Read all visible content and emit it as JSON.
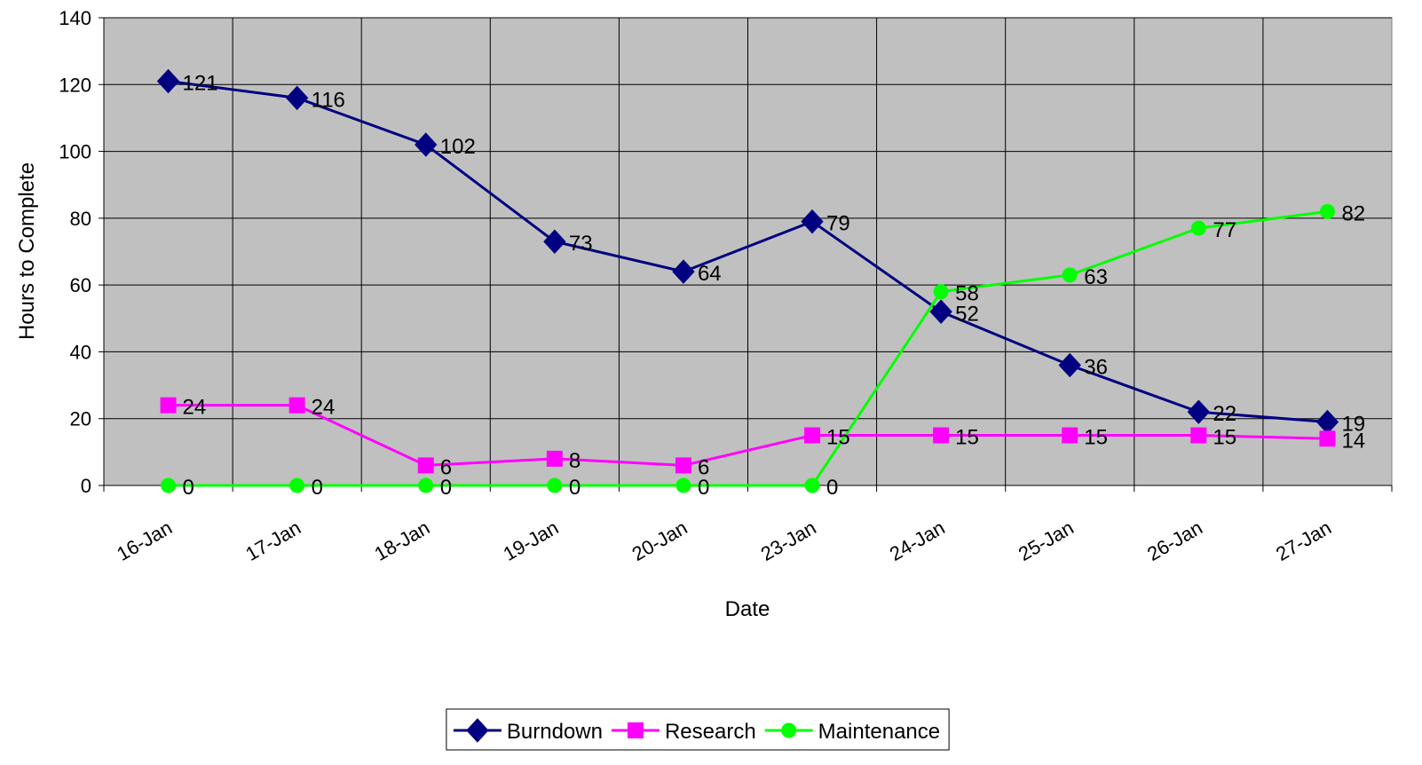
{
  "chart_data": {
    "type": "line",
    "x_label": "Date",
    "y_label": "Hours to Complete",
    "categories": [
      "16-Jan",
      "17-Jan",
      "18-Jan",
      "19-Jan",
      "20-Jan",
      "23-Jan",
      "24-Jan",
      "25-Jan",
      "26-Jan",
      "27-Jan"
    ],
    "series": [
      {
        "name": "Burndown",
        "color": "#000080",
        "marker": "diamond",
        "values": [
          121,
          116,
          102,
          73,
          64,
          79,
          52,
          36,
          22,
          19
        ]
      },
      {
        "name": "Research",
        "color": "#ff00ff",
        "marker": "square",
        "values": [
          24,
          24,
          6,
          8,
          6,
          15,
          15,
          15,
          15,
          14
        ]
      },
      {
        "name": "Maintenance",
        "color": "#00ff00",
        "marker": "circle",
        "values": [
          0,
          0,
          0,
          0,
          0,
          0,
          58,
          63,
          77,
          82
        ]
      }
    ],
    "ylim": [
      0,
      140
    ],
    "yticks": [
      0,
      20,
      40,
      60,
      80,
      100,
      120,
      140
    ],
    "grid": true,
    "legend": "bottom",
    "plot_background": "#c0c0c0"
  }
}
